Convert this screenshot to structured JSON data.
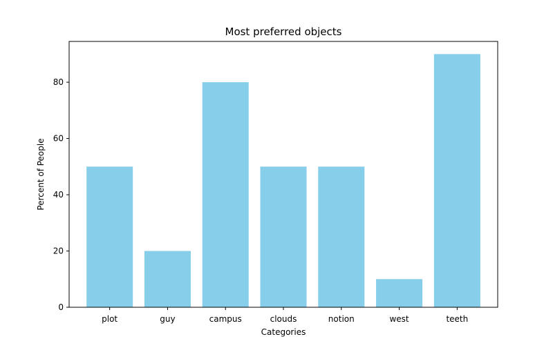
{
  "chart_data": {
    "type": "bar",
    "title": "Most preferred objects",
    "xlabel": "Categories",
    "ylabel": "Percent of People",
    "categories": [
      "plot",
      "guy",
      "campus",
      "clouds",
      "notion",
      "west",
      "teeth"
    ],
    "values": [
      50,
      20,
      80,
      50,
      50,
      10,
      90
    ],
    "ylim": [
      0,
      94.5
    ],
    "yticks": [
      "0",
      "20",
      "40",
      "60",
      "80"
    ],
    "bar_color": "#87CEEB",
    "grid": false,
    "legend": "none"
  }
}
